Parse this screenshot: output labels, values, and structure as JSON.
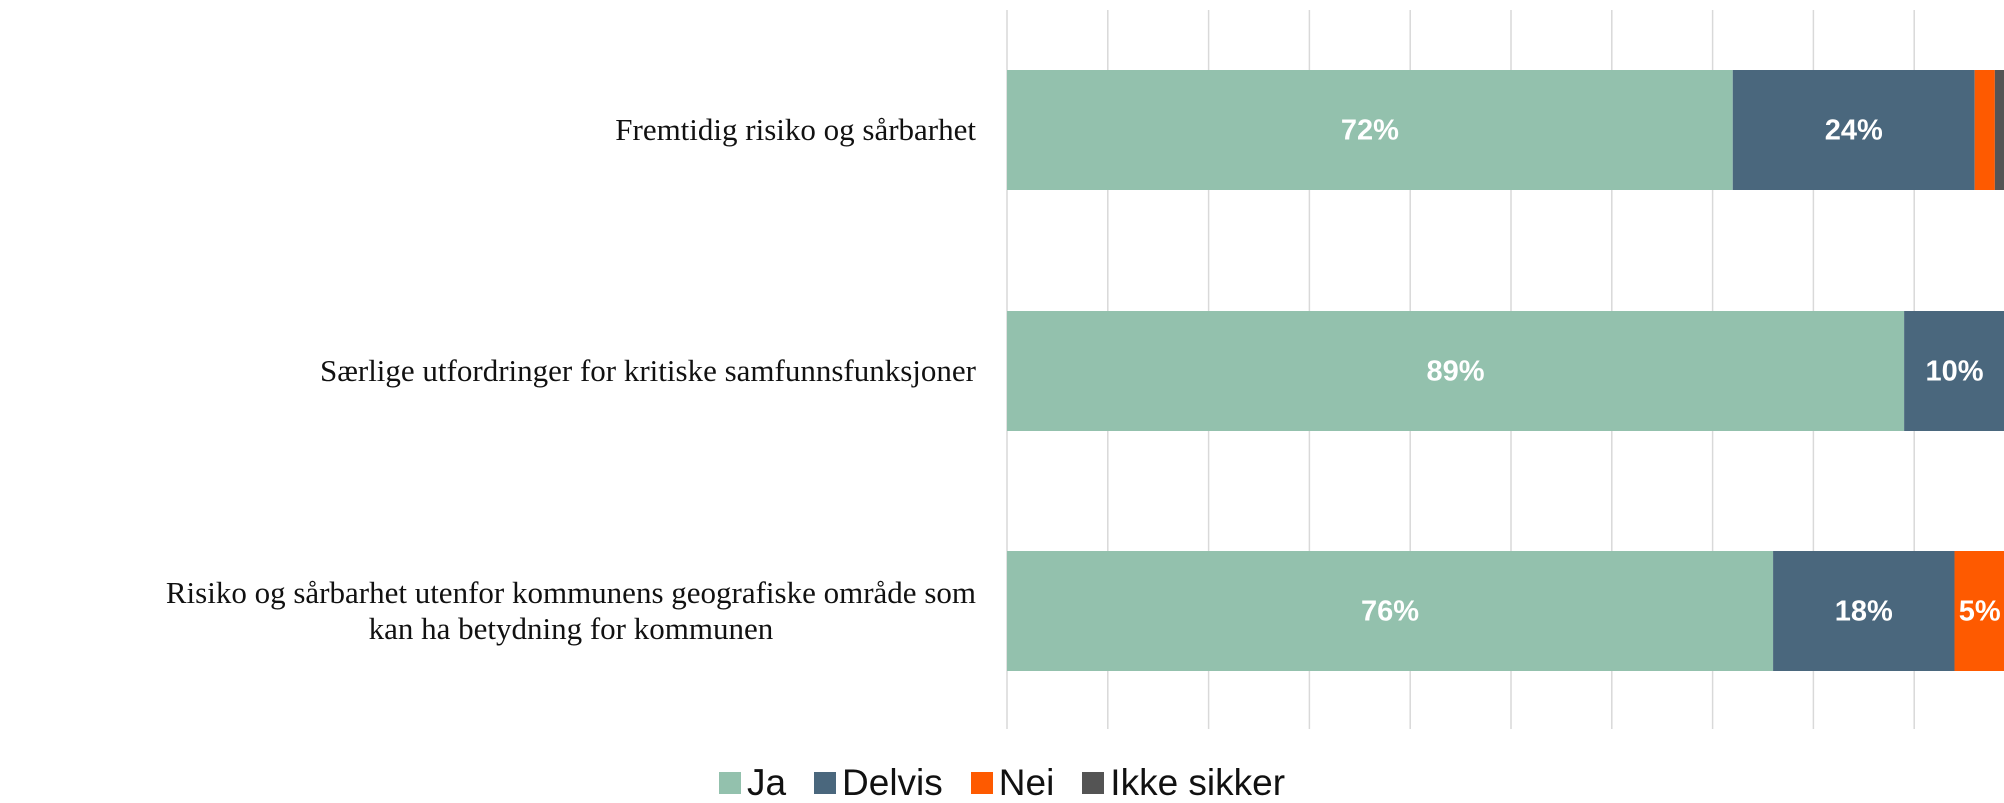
{
  "chart_data": {
    "type": "stacked_barh",
    "categories": [
      "Fremtidig risiko og sårbarhet",
      "Særlige utfordringer for kritiske samfunnsfunksjoner",
      "Risiko og sårbarhet utenfor kommunens geografiske område som\nkan ha betydning for kommunen"
    ],
    "series": [
      {
        "name": "Ja",
        "color": "#93c1ad",
        "values": [
          72,
          89,
          76
        ],
        "value_labels": [
          "72%",
          "89%",
          "76%"
        ]
      },
      {
        "name": "Delvis",
        "color": "#4a677d",
        "values": [
          24,
          10,
          18
        ],
        "value_labels": [
          "24%",
          "10%",
          "18%"
        ]
      },
      {
        "name": "Nei",
        "color": "#fe5a00",
        "values": [
          2,
          1,
          5
        ],
        "value_labels": [
          null,
          null,
          "5%"
        ]
      },
      {
        "name": "Ikke sikker",
        "color": "#545454",
        "values": [
          2,
          0,
          1
        ],
        "value_labels": [
          null,
          null,
          null
        ]
      }
    ],
    "xlim": [
      0,
      100
    ],
    "xticks": [
      0,
      10,
      20,
      30,
      40,
      50,
      60,
      70,
      80,
      90,
      100
    ],
    "grid": true,
    "legend": "bottom"
  }
}
